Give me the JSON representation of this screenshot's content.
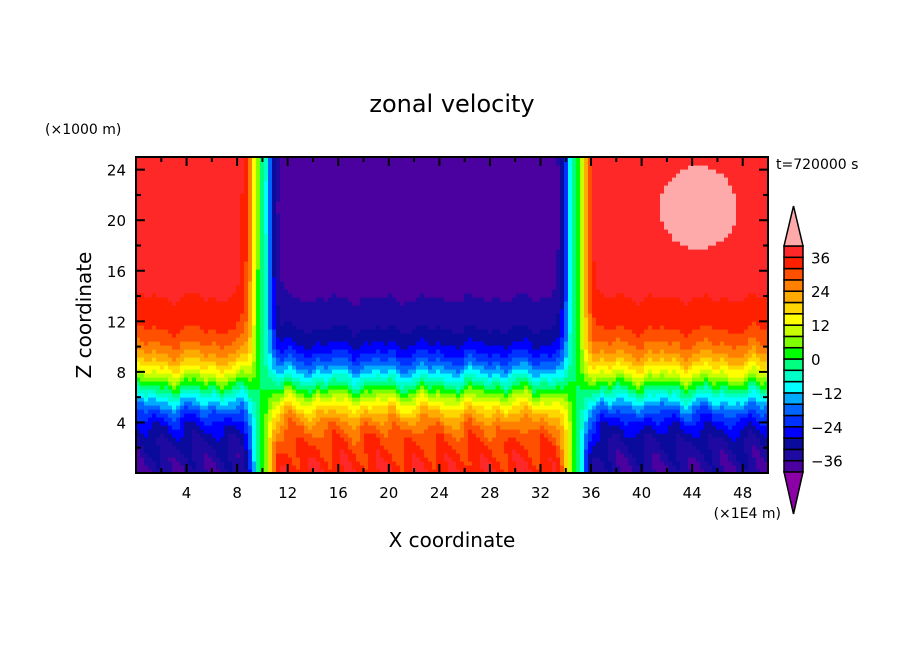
{
  "chart_data": {
    "type": "heatmap",
    "title": "zonal velocity",
    "xlabel": "X coordinate",
    "ylabel": "Z coordinate",
    "x_unit": "(×1E4 m)",
    "y_unit": "(×1000 m)",
    "time_label": "t=720000 s",
    "xlim": [
      0,
      50
    ],
    "ylim": [
      0,
      25
    ],
    "x_ticks": [
      4,
      8,
      12,
      16,
      20,
      24,
      28,
      32,
      36,
      40,
      44,
      48
    ],
    "y_ticks": [
      4,
      8,
      12,
      16,
      20,
      24
    ],
    "colorbar": {
      "labels": [
        36,
        24,
        12,
        0,
        -12,
        -24,
        -36
      ],
      "levels": [
        -40,
        -36,
        -32,
        -28,
        -24,
        -20,
        -16,
        -12,
        -8,
        -4,
        0,
        4,
        8,
        12,
        16,
        20,
        24,
        28,
        32,
        36,
        40
      ],
      "extend": "both",
      "colors": [
        "#8c00a8",
        "#4b00a0",
        "#1e0aa0",
        "#0a0a9c",
        "#0000ff",
        "#0032ff",
        "#0064ff",
        "#00aaff",
        "#00ffff",
        "#00ffc8",
        "#00ff80",
        "#00ff00",
        "#80ff00",
        "#c8ff00",
        "#ffff00",
        "#ffd700",
        "#ffaa00",
        "#ff8000",
        "#ff5000",
        "#ff2000",
        "#ff2828",
        "#ffaaaa"
      ]
    },
    "field_description_regions": [
      {
        "x_range": [
          0,
          10
        ],
        "z_range": [
          12,
          25
        ],
        "value_approx": 34
      },
      {
        "x_range": [
          10,
          35
        ],
        "z_range": [
          12,
          25
        ],
        "value_approx": -36
      },
      {
        "x_range": [
          35,
          50
        ],
        "z_range": [
          12,
          25
        ],
        "value_approx": 38
      },
      {
        "x_range": [
          0,
          10
        ],
        "z_range": [
          0,
          4
        ],
        "value_approx": -34
      },
      {
        "x_range": [
          10,
          35
        ],
        "z_range": [
          0,
          4
        ],
        "value_approx": 30
      },
      {
        "x_range": [
          35,
          50
        ],
        "z_range": [
          0,
          4
        ],
        "value_approx": -34
      }
    ]
  }
}
